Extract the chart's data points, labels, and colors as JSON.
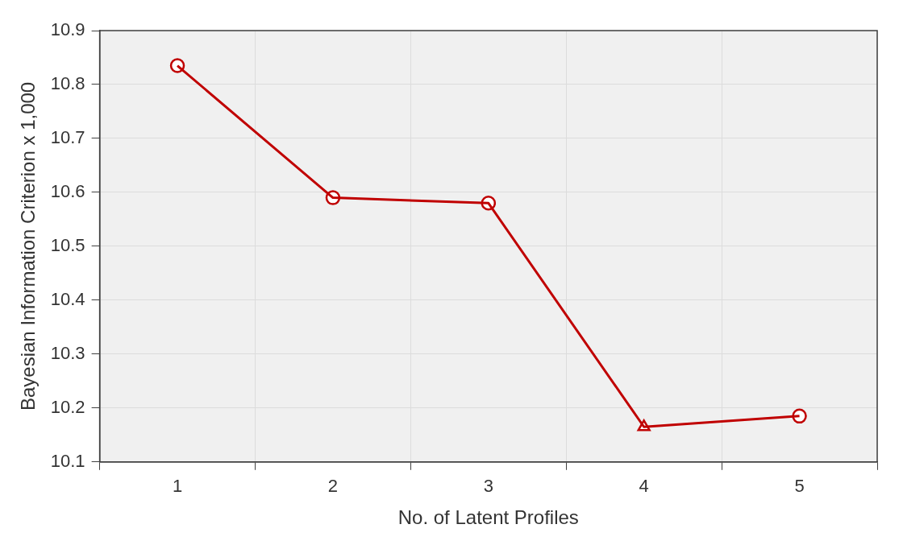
{
  "chart_data": {
    "type": "line",
    "xlabel": "No. of Latent Profiles",
    "ylabel": "Bayesian Information Criterion x 1,000",
    "categories": [
      "1",
      "2",
      "3",
      "4",
      "5"
    ],
    "series": [
      {
        "type": "line",
        "color": "#c00000",
        "marker": "none",
        "values": [
          10.835,
          10.59,
          10.58,
          10.165,
          10.185
        ]
      },
      {
        "type": "scatter",
        "color": "#c00000",
        "marker": "circle",
        "values": [
          10.835,
          10.59,
          10.58,
          null,
          10.185
        ]
      },
      {
        "type": "scatter",
        "color": "#c00000",
        "marker": "triangle",
        "values": [
          null,
          null,
          null,
          10.165,
          null
        ]
      }
    ],
    "ylim": [
      10.1,
      10.9
    ],
    "yticks": [
      10.1,
      10.2,
      10.3,
      10.4,
      10.5,
      10.6,
      10.7,
      10.8,
      10.9
    ],
    "grid": true,
    "legend": false
  }
}
